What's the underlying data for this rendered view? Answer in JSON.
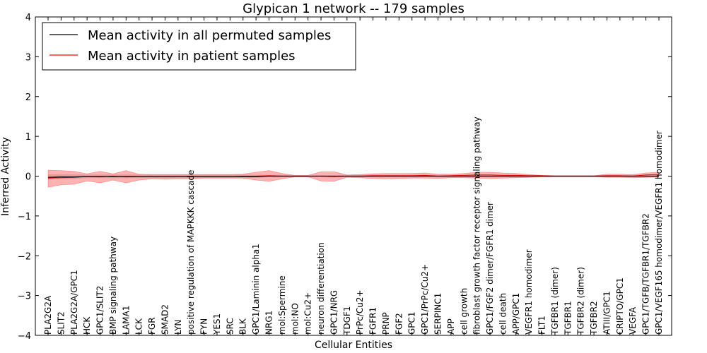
{
  "chart_data": {
    "type": "line",
    "title": "Glypican 1 network -- 179 samples",
    "xlabel": "Cellular Entities",
    "ylabel": "Inferred Activity",
    "ylim": [
      -4,
      4
    ],
    "yticks": [
      -4,
      -3,
      -2,
      -1,
      0,
      1,
      2,
      3,
      4
    ],
    "yticklabels": [
      "−4",
      "−3",
      "−2",
      "−1",
      "0",
      "1",
      "2",
      "3",
      "4"
    ],
    "grid": false,
    "legend": {
      "placement": "top-left",
      "entries": [
        {
          "label": "Mean activity in all permuted samples",
          "color": "#000000"
        },
        {
          "label": "Mean activity in patient samples",
          "color": "#ff0000"
        }
      ]
    },
    "categories": [
      "PLA2G2A",
      "SLIT2",
      "PLA2G2A/GPC1",
      "HCK",
      "GPC1/SLIT2",
      "BMP signaling pathway",
      "LAMA1",
      "LCK",
      "FGR",
      "SMAD2",
      "LYN",
      "positive regulation of MAPKKK cascade",
      "FYN",
      "YES1",
      "SRC",
      "BLK",
      "GPC1/Laminin alpha1",
      "NRG1",
      "mol:Spermine",
      "mol:NO",
      "mol:Cu2+",
      "neuron differentiation",
      "GPC1/NRG",
      "TDGF1",
      "PrPc/Cu2+",
      "FGFR1",
      "PRNP",
      "FGF2",
      "GPC1",
      "GPC1/PrPc/Cu2+",
      "SERPINC1",
      "APP",
      "cell growth",
      "fibroblast growth factor receptor signaling pathway",
      "GPC1/FGF2 dimer/FGFR1 dimer",
      "cell death",
      "APP/GPC1",
      "VEGFR1 homodimer",
      "FLT1",
      "TGFBR1 (dimer)",
      "TGFBR1",
      "TGFBR2 (dimer)",
      "TGFBR2",
      "ATIII/GPC1",
      "CRIPTO/GPC1",
      "VEGFA",
      "GPC1/TGFB/TGFBR1/TGFBR2",
      "GPC1/VEGF165 homodimer/VEGFR1 homodimer"
    ],
    "series": [
      {
        "name": "Mean activity in all permuted samples",
        "color": "#000000",
        "values": [
          -0.03,
          -0.02,
          -0.02,
          -0.01,
          -0.01,
          -0.01,
          -0.01,
          -0.01,
          -0.01,
          -0.01,
          -0.01,
          -0.01,
          -0.01,
          -0.01,
          -0.01,
          -0.01,
          -0.01,
          0.0,
          0.0,
          0.0,
          0.0,
          0.0,
          0.0,
          0.0,
          0.0,
          0.0,
          0.0,
          0.0,
          0.0,
          0.0,
          0.0,
          0.0,
          0.0,
          0.0,
          0.0,
          0.0,
          0.0,
          0.0,
          0.0,
          0.0,
          0.0,
          0.0,
          0.0,
          0.0,
          0.0,
          0.0,
          0.0,
          0.0
        ],
        "band_lower": [
          -0.08,
          -0.07,
          -0.07,
          -0.05,
          -0.05,
          -0.05,
          -0.05,
          -0.05,
          -0.05,
          -0.05,
          -0.05,
          -0.05,
          -0.05,
          -0.05,
          -0.05,
          -0.05,
          -0.04,
          -0.03,
          -0.03,
          -0.02,
          -0.02,
          -0.02,
          -0.02,
          -0.02,
          -0.03,
          -0.03,
          -0.03,
          -0.03,
          -0.03,
          -0.03,
          -0.03,
          -0.03,
          -0.03,
          -0.03,
          -0.03,
          -0.03,
          -0.03,
          -0.03,
          -0.02,
          -0.02,
          -0.02,
          -0.02,
          -0.02,
          -0.02,
          -0.02,
          -0.03,
          -0.03,
          -0.03
        ],
        "band_upper": [
          0.05,
          0.05,
          0.05,
          0.04,
          0.04,
          0.04,
          0.04,
          0.04,
          0.04,
          0.04,
          0.04,
          0.04,
          0.04,
          0.04,
          0.04,
          0.04,
          0.03,
          0.03,
          0.03,
          0.02,
          0.02,
          0.02,
          0.02,
          0.02,
          0.03,
          0.03,
          0.03,
          0.03,
          0.03,
          0.03,
          0.03,
          0.03,
          0.03,
          0.03,
          0.03,
          0.03,
          0.03,
          0.03,
          0.02,
          0.02,
          0.02,
          0.02,
          0.02,
          0.02,
          0.02,
          0.03,
          0.03,
          0.03
        ]
      },
      {
        "name": "Mean activity in patient samples",
        "color": "#ff0000",
        "values": [
          -0.05,
          -0.04,
          -0.03,
          -0.01,
          -0.02,
          0.0,
          -0.02,
          -0.01,
          -0.01,
          -0.01,
          -0.01,
          -0.01,
          -0.01,
          -0.01,
          -0.01,
          0.0,
          0.0,
          0.01,
          0.0,
          0.0,
          0.0,
          0.0,
          -0.01,
          0.0,
          0.0,
          0.01,
          0.01,
          0.01,
          0.01,
          0.02,
          0.0,
          0.01,
          0.02,
          0.03,
          0.03,
          0.02,
          0.02,
          0.01,
          0.01,
          0.0,
          0.0,
          0.0,
          0.0,
          0.01,
          0.01,
          0.0,
          0.03,
          0.04
        ],
        "band_lower": [
          -0.28,
          -0.22,
          -0.2,
          -0.12,
          -0.17,
          -0.1,
          -0.17,
          -0.1,
          -0.07,
          -0.08,
          -0.07,
          -0.07,
          -0.05,
          -0.05,
          -0.05,
          -0.05,
          -0.1,
          -0.13,
          -0.07,
          -0.02,
          -0.02,
          -0.12,
          -0.13,
          -0.03,
          -0.04,
          -0.06,
          -0.07,
          -0.06,
          -0.05,
          -0.05,
          -0.06,
          -0.04,
          -0.04,
          -0.05,
          -0.06,
          -0.05,
          -0.04,
          -0.03,
          -0.02,
          -0.01,
          -0.01,
          -0.01,
          -0.01,
          -0.03,
          -0.03,
          -0.04,
          -0.03,
          -0.02
        ],
        "band_upper": [
          0.15,
          0.14,
          0.12,
          0.06,
          0.12,
          0.06,
          0.14,
          0.05,
          0.04,
          0.04,
          0.04,
          0.04,
          0.04,
          0.04,
          0.04,
          0.05,
          0.1,
          0.14,
          0.07,
          0.02,
          0.02,
          0.11,
          0.11,
          0.03,
          0.04,
          0.06,
          0.07,
          0.07,
          0.07,
          0.08,
          0.05,
          0.05,
          0.07,
          0.1,
          0.1,
          0.08,
          0.07,
          0.04,
          0.02,
          0.01,
          0.01,
          0.01,
          0.01,
          0.05,
          0.05,
          0.04,
          0.08,
          0.1
        ]
      }
    ]
  }
}
